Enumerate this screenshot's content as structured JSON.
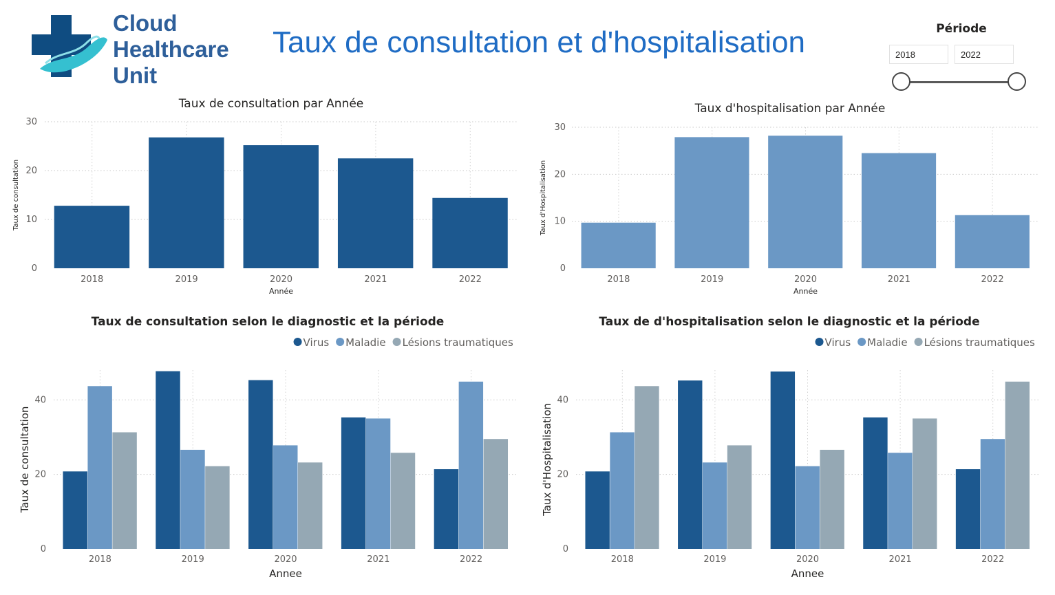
{
  "logo": {
    "lines": [
      "Cloud",
      "Healthcare",
      "Unit"
    ],
    "colors": {
      "cross": "#0f4c81",
      "hand": "#35c0d0",
      "text": "#2e5f9a"
    }
  },
  "page_title": "Taux de consultation et d'hospitalisation",
  "slicer": {
    "title": "Période",
    "start": "2018",
    "end": "2022"
  },
  "chart_data": [
    {
      "type": "bar",
      "title": "Taux de consultation par Année",
      "xlabel": "Année",
      "ylabel": "Taux de consultation",
      "categories": [
        "2018",
        "2019",
        "2020",
        "2021",
        "2022"
      ],
      "values": [
        12.8,
        26.8,
        25.2,
        22.5,
        14.4
      ],
      "ylim": [
        0,
        30
      ],
      "yticks": [
        0,
        10,
        20,
        30
      ],
      "grid": true,
      "colors": [
        "#1c588f"
      ]
    },
    {
      "type": "bar",
      "title": "Taux d'hospitalisation par Année",
      "xlabel": "Année",
      "ylabel": "Taux d'Hospitalisation",
      "categories": [
        "2018",
        "2019",
        "2020",
        "2021",
        "2022"
      ],
      "values": [
        9.7,
        27.9,
        28.2,
        24.5,
        11.3
      ],
      "ylim": [
        0,
        30
      ],
      "yticks": [
        0,
        10,
        20,
        30
      ],
      "grid": true,
      "colors": [
        "#6b98c5"
      ]
    },
    {
      "type": "bar",
      "title": "Taux de consultation selon le diagnostic et la période",
      "xlabel": "Annee",
      "ylabel": "Taux de consultation",
      "categories": [
        "2018",
        "2019",
        "2020",
        "2021",
        "2022"
      ],
      "series": [
        {
          "name": "Virus",
          "values": [
            20.8,
            47.7,
            45.3,
            35.3,
            21.4
          ]
        },
        {
          "name": "Maladie",
          "values": [
            43.7,
            26.6,
            27.8,
            35.0,
            44.9
          ]
        },
        {
          "name": "Lésions traumatiques",
          "values": [
            31.3,
            22.2,
            23.2,
            25.8,
            29.5
          ]
        }
      ],
      "ylim": [
        0,
        48
      ],
      "yticks": [
        0,
        20,
        40
      ],
      "legend": "top-right",
      "grid": true,
      "colors": [
        "#1c588f",
        "#6b98c5",
        "#95a8b4"
      ]
    },
    {
      "type": "bar",
      "title": "Taux de d'hospitalisation selon le diagnostic et la période",
      "xlabel": "Annee",
      "ylabel": "Taux d'Hospitalisation",
      "categories": [
        "2018",
        "2019",
        "2020",
        "2021",
        "2022"
      ],
      "series": [
        {
          "name": "Virus",
          "values": [
            20.8,
            45.2,
            47.6,
            35.3,
            21.4
          ]
        },
        {
          "name": "Maladie",
          "values": [
            31.3,
            23.2,
            22.2,
            25.8,
            29.5
          ]
        },
        {
          "name": "Lésions traumatiques",
          "values": [
            43.7,
            27.8,
            26.6,
            35.0,
            44.9
          ]
        }
      ],
      "ylim": [
        0,
        48
      ],
      "yticks": [
        0,
        20,
        40
      ],
      "legend": "top-right",
      "grid": true,
      "colors": [
        "#1c588f",
        "#6b98c5",
        "#95a8b4"
      ]
    }
  ]
}
